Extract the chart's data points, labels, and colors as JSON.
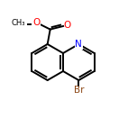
{
  "bg_color": "#ffffff",
  "bond_color": "#000000",
  "N_color": "#0000ff",
  "Br_color": "#8B4513",
  "O_color": "#ff0000",
  "line_width": 1.4,
  "font_size_atoms": 7.5,
  "font_size_small": 6.5,
  "xlim": [
    -3.8,
    3.8
  ],
  "ylim": [
    -3.5,
    2.8
  ]
}
